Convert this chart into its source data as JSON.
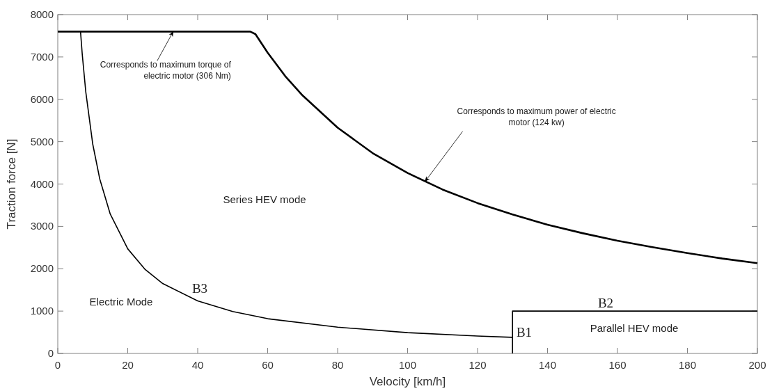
{
  "chart_data": {
    "type": "line",
    "xlabel": "Velocity [km/h]",
    "ylabel": "Traction force [N]",
    "xlim": [
      0,
      200
    ],
    "xticks": [
      0,
      20,
      40,
      60,
      80,
      100,
      120,
      140,
      160,
      180,
      200
    ],
    "ylim": [
      0,
      8000
    ],
    "yticks": [
      0,
      1000,
      2000,
      3000,
      4000,
      5000,
      6000,
      7000,
      8000
    ],
    "grid": false,
    "marker": "none",
    "line_style": "solid",
    "series": [
      {
        "color": "#000000",
        "x": [
          0,
          55,
          56.5,
          60,
          65,
          70,
          80,
          90,
          100,
          110,
          120,
          130,
          140,
          150,
          160,
          170,
          180,
          190,
          200
        ],
        "values": [
          7600,
          7600,
          7540,
          7100,
          6550,
          6090,
          5330,
          4730,
          4260,
          3870,
          3550,
          3280,
          3040,
          2840,
          2660,
          2510,
          2370,
          2240,
          2130
        ]
      },
      {
        "color": "#000000",
        "x": [
          6.5,
          7,
          8,
          10,
          12,
          15,
          20,
          25,
          30,
          40,
          50,
          60,
          80,
          100,
          120,
          130
        ],
        "values": [
          7600,
          7060,
          6180,
          4940,
          4120,
          3290,
          2470,
          1980,
          1650,
          1240,
          990,
          820,
          620,
          490,
          410,
          380
        ]
      },
      {
        "color": "#000000",
        "x": [
          130,
          130,
          200
        ],
        "values": [
          0,
          1000,
          1000
        ]
      }
    ],
    "annotations": [
      {
        "text": "Corresponds to maximum torque of electric motor (306 Nm)",
        "x": 33,
        "y": 7600
      },
      {
        "text": "Corresponds to maximum power of electric motor (124 kw)",
        "x": 105,
        "y": 4060
      },
      "Series HEV mode",
      "Electric Mode",
      "B3",
      "B1",
      "B2",
      "Parallel HEV mode"
    ]
  }
}
